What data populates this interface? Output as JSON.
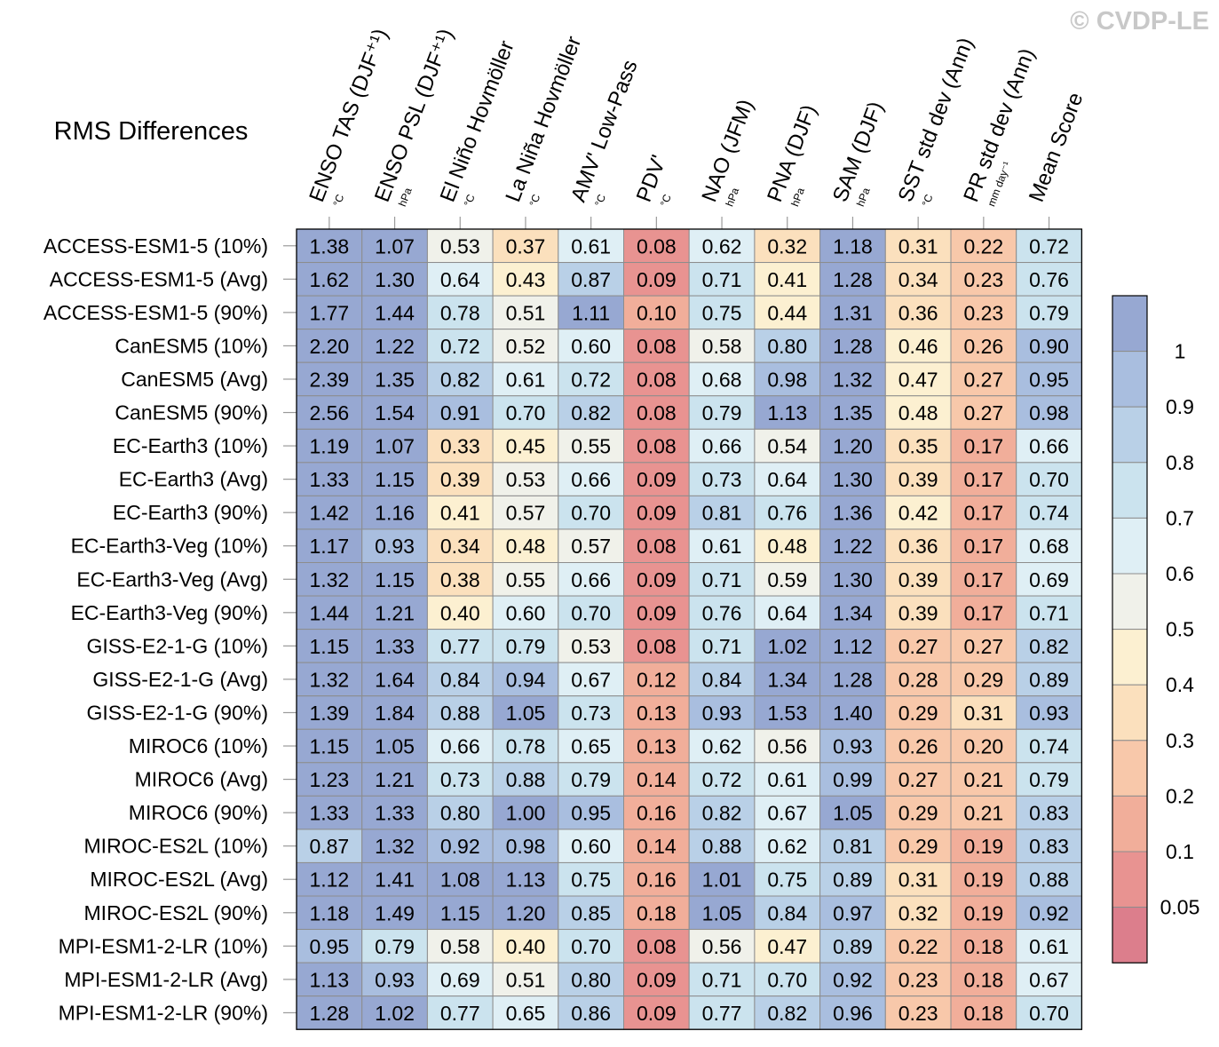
{
  "chart_data": {
    "type": "heatmap",
    "title": "RMS Differences",
    "watermark": "© CVDP-LE",
    "columns": [
      {
        "label": "ENSO TAS (DJF⁺¹)",
        "unit": "°C"
      },
      {
        "label": "ENSO PSL (DJF⁺¹)",
        "unit": "hPa"
      },
      {
        "label": "El Niño Hovmöller",
        "unit": "°C"
      },
      {
        "label": "La Niña Hovmöller",
        "unit": "°C"
      },
      {
        "label": "AMV' Low-Pass",
        "unit": "°C"
      },
      {
        "label": "PDV'",
        "unit": "°C"
      },
      {
        "label": "NAO (JFM)",
        "unit": "hPa"
      },
      {
        "label": "PNA (DJF)",
        "unit": "hPa"
      },
      {
        "label": "SAM (DJF)",
        "unit": "hPa"
      },
      {
        "label": "SST std dev (Ann)",
        "unit": "°C"
      },
      {
        "label": "PR std dev (Ann)",
        "unit": "mm day⁻¹"
      },
      {
        "label": "Mean Score",
        "unit": ""
      }
    ],
    "rows": [
      "ACCESS-ESM1-5 (10%)",
      "ACCESS-ESM1-5 (Avg)",
      "ACCESS-ESM1-5 (90%)",
      "CanESM5 (10%)",
      "CanESM5 (Avg)",
      "CanESM5 (90%)",
      "EC-Earth3 (10%)",
      "EC-Earth3 (Avg)",
      "EC-Earth3 (90%)",
      "EC-Earth3-Veg (10%)",
      "EC-Earth3-Veg (Avg)",
      "EC-Earth3-Veg (90%)",
      "GISS-E2-1-G (10%)",
      "GISS-E2-1-G (Avg)",
      "GISS-E2-1-G (90%)",
      "MIROC6 (10%)",
      "MIROC6 (Avg)",
      "MIROC6 (90%)",
      "MIROC-ES2L (10%)",
      "MIROC-ES2L (Avg)",
      "MIROC-ES2L (90%)",
      "MPI-ESM1-2-LR (10%)",
      "MPI-ESM1-2-LR (Avg)",
      "MPI-ESM1-2-LR (90%)"
    ],
    "values": [
      [
        "1.38",
        "1.07",
        "0.53",
        "0.37",
        "0.61",
        "0.08",
        "0.62",
        "0.32",
        "1.18",
        "0.31",
        "0.22",
        "0.72"
      ],
      [
        "1.62",
        "1.30",
        "0.64",
        "0.43",
        "0.87",
        "0.09",
        "0.71",
        "0.41",
        "1.28",
        "0.34",
        "0.23",
        "0.76"
      ],
      [
        "1.77",
        "1.44",
        "0.78",
        "0.51",
        "1.11",
        "0.10",
        "0.75",
        "0.44",
        "1.31",
        "0.36",
        "0.23",
        "0.79"
      ],
      [
        "2.20",
        "1.22",
        "0.72",
        "0.52",
        "0.60",
        "0.08",
        "0.58",
        "0.80",
        "1.28",
        "0.46",
        "0.26",
        "0.90"
      ],
      [
        "2.39",
        "1.35",
        "0.82",
        "0.61",
        "0.72",
        "0.08",
        "0.68",
        "0.98",
        "1.32",
        "0.47",
        "0.27",
        "0.95"
      ],
      [
        "2.56",
        "1.54",
        "0.91",
        "0.70",
        "0.82",
        "0.08",
        "0.79",
        "1.13",
        "1.35",
        "0.48",
        "0.27",
        "0.98"
      ],
      [
        "1.19",
        "1.07",
        "0.33",
        "0.45",
        "0.55",
        "0.08",
        "0.66",
        "0.54",
        "1.20",
        "0.35",
        "0.17",
        "0.66"
      ],
      [
        "1.33",
        "1.15",
        "0.39",
        "0.53",
        "0.66",
        "0.09",
        "0.73",
        "0.64",
        "1.30",
        "0.39",
        "0.17",
        "0.70"
      ],
      [
        "1.42",
        "1.16",
        "0.41",
        "0.57",
        "0.70",
        "0.09",
        "0.81",
        "0.76",
        "1.36",
        "0.42",
        "0.17",
        "0.74"
      ],
      [
        "1.17",
        "0.93",
        "0.34",
        "0.48",
        "0.57",
        "0.08",
        "0.61",
        "0.48",
        "1.22",
        "0.36",
        "0.17",
        "0.68"
      ],
      [
        "1.32",
        "1.15",
        "0.38",
        "0.55",
        "0.66",
        "0.09",
        "0.71",
        "0.59",
        "1.30",
        "0.39",
        "0.17",
        "0.69"
      ],
      [
        "1.44",
        "1.21",
        "0.40",
        "0.60",
        "0.70",
        "0.09",
        "0.76",
        "0.64",
        "1.34",
        "0.39",
        "0.17",
        "0.71"
      ],
      [
        "1.15",
        "1.33",
        "0.77",
        "0.79",
        "0.53",
        "0.08",
        "0.71",
        "1.02",
        "1.12",
        "0.27",
        "0.27",
        "0.82"
      ],
      [
        "1.32",
        "1.64",
        "0.84",
        "0.94",
        "0.67",
        "0.12",
        "0.84",
        "1.34",
        "1.28",
        "0.28",
        "0.29",
        "0.89"
      ],
      [
        "1.39",
        "1.84",
        "0.88",
        "1.05",
        "0.73",
        "0.13",
        "0.93",
        "1.53",
        "1.40",
        "0.29",
        "0.31",
        "0.93"
      ],
      [
        "1.15",
        "1.05",
        "0.66",
        "0.78",
        "0.65",
        "0.13",
        "0.62",
        "0.56",
        "0.93",
        "0.26",
        "0.20",
        "0.74"
      ],
      [
        "1.23",
        "1.21",
        "0.73",
        "0.88",
        "0.79",
        "0.14",
        "0.72",
        "0.61",
        "0.99",
        "0.27",
        "0.21",
        "0.79"
      ],
      [
        "1.33",
        "1.33",
        "0.80",
        "1.00",
        "0.95",
        "0.16",
        "0.82",
        "0.67",
        "1.05",
        "0.29",
        "0.21",
        "0.83"
      ],
      [
        "0.87",
        "1.32",
        "0.92",
        "0.98",
        "0.60",
        "0.14",
        "0.88",
        "0.62",
        "0.81",
        "0.29",
        "0.19",
        "0.83"
      ],
      [
        "1.12",
        "1.41",
        "1.08",
        "1.13",
        "0.75",
        "0.16",
        "1.01",
        "0.75",
        "0.89",
        "0.31",
        "0.19",
        "0.88"
      ],
      [
        "1.18",
        "1.49",
        "1.15",
        "1.20",
        "0.85",
        "0.18",
        "1.05",
        "0.84",
        "0.97",
        "0.32",
        "0.19",
        "0.92"
      ],
      [
        "0.95",
        "0.79",
        "0.58",
        "0.40",
        "0.70",
        "0.08",
        "0.56",
        "0.47",
        "0.89",
        "0.22",
        "0.18",
        "0.61"
      ],
      [
        "1.13",
        "0.93",
        "0.69",
        "0.51",
        "0.80",
        "0.09",
        "0.71",
        "0.70",
        "0.92",
        "0.23",
        "0.18",
        "0.67"
      ],
      [
        "1.28",
        "1.02",
        "0.77",
        "0.65",
        "0.86",
        "0.09",
        "0.77",
        "0.82",
        "0.96",
        "0.23",
        "0.18",
        "0.70"
      ]
    ],
    "colorbar": {
      "levels": [
        1,
        0.9,
        0.8,
        0.7,
        0.6,
        0.5,
        0.4,
        0.3,
        0.2,
        0.1,
        0.05
      ],
      "labels": [
        "1",
        "0.9",
        "0.8",
        "0.7",
        "0.6",
        "0.5",
        "0.4",
        "0.3",
        "0.2",
        "0.1",
        "0.05"
      ],
      "colors_top_to_bottom": [
        "#97a8d2",
        "#a9bedf",
        "#b9d0e7",
        "#cbe3ee",
        "#dfeff5",
        "#f0f1ea",
        "#fcf0d1",
        "#fbe0bd",
        "#f8c8aa",
        "#f1ae9a",
        "#e89391",
        "#dc7e8c"
      ]
    }
  }
}
